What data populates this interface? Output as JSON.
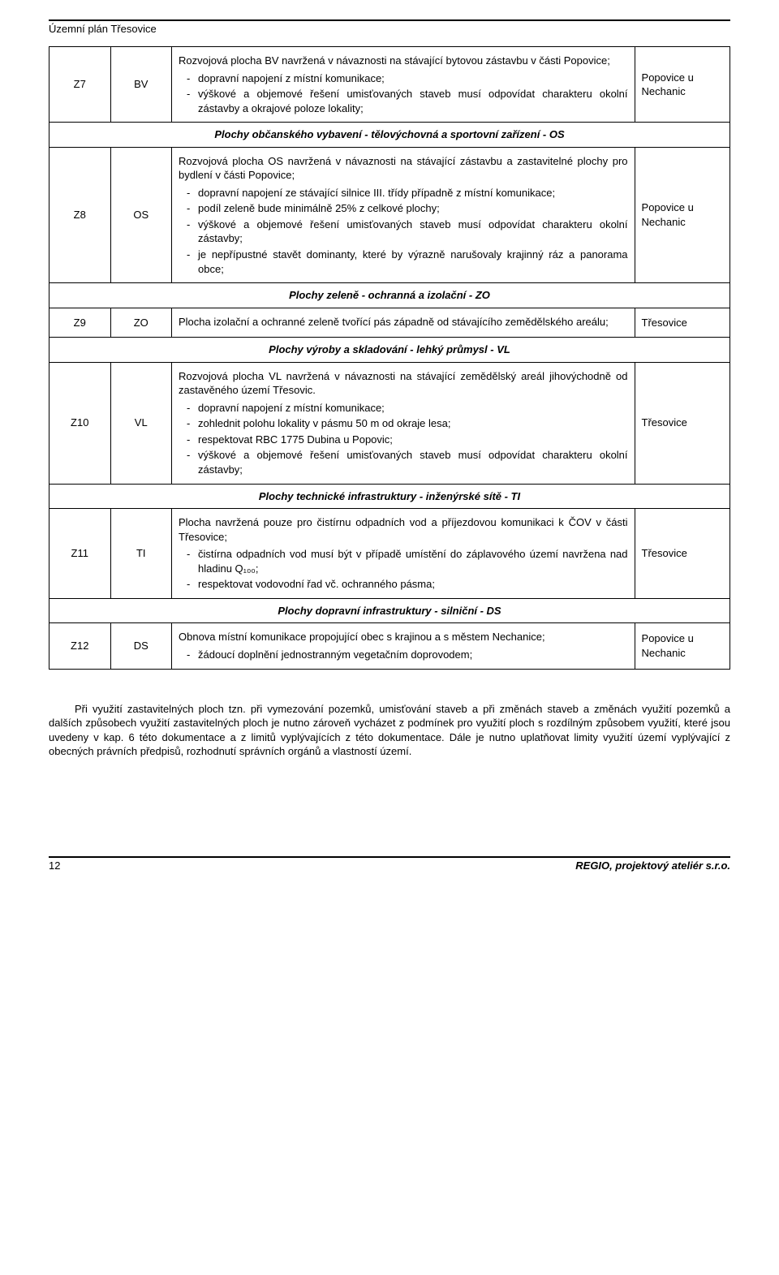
{
  "doc_title": "Územní plán Třesovice",
  "sections": [
    {
      "rows": [
        {
          "code": "Z7",
          "type": "BV",
          "intro": "Rozvojová plocha BV navržená v návaznosti na stávající bytovou zástavbu v části Popovice;",
          "bullets": [
            "dopravní napojení z místní komunikace;",
            "výškové a objemové řešení umisťovaných staveb musí odpovídat charakteru okolní zástavby a okrajové poloze lokality;"
          ],
          "location": "Popovice u Nechanic"
        }
      ]
    },
    {
      "header": "Plochy občanského vybavení - tělovýchovná a sportovní zařízení - OS",
      "rows": [
        {
          "code": "Z8",
          "type": "OS",
          "intro": "Rozvojová plocha OS navržená v návaznosti na stávající zástavbu a zastavitelné plochy pro bydlení v části Popovice;",
          "bullets": [
            "dopravní napojení ze stávající silnice III. třídy případně z místní komunikace;",
            "podíl zeleně bude minimálně 25% z celkové plochy;",
            "výškové a objemové řešení umisťovaných staveb musí odpovídat charakteru okolní zástavby;",
            "je nepřípustné stavět dominanty, které by výrazně narušovaly krajinný ráz a panorama obce;"
          ],
          "location": "Popovice u Nechanic"
        }
      ]
    },
    {
      "header": "Plochy zeleně - ochranná a izolační - ZO",
      "rows": [
        {
          "code": "Z9",
          "type": "ZO",
          "intro": "Plocha izolační a ochranné zeleně tvořící pás západně od stávajícího zemědělského areálu;",
          "bullets": [],
          "location": "Třesovice"
        }
      ]
    },
    {
      "header": "Plochy výroby a skladování - lehký průmysl - VL",
      "rows": [
        {
          "code": "Z10",
          "type": "VL",
          "intro": "Rozvojová plocha VL navržená v návaznosti na stávající zemědělský areál jihovýchodně od zastavěného území Třesovic.",
          "bullets": [
            "dopravní napojení z místní komunikace;",
            "zohlednit polohu lokality v pásmu 50 m od okraje lesa;",
            "respektovat RBC 1775 Dubina u Popovic;",
            "výškové a objemové řešení umisťovaných staveb musí odpovídat charakteru okolní zástavby;"
          ],
          "location": "Třesovice"
        }
      ]
    },
    {
      "header": "Plochy technické infrastruktury - inženýrské sítě - TI",
      "rows": [
        {
          "code": "Z11",
          "type": "TI",
          "intro": "Plocha navržená pouze pro čistírnu odpadních vod a příjezdovou komunikaci k ČOV v části Třesovice;",
          "bullets": [
            "čistírna odpadních vod musí být v případě umístění do záplavového území navržena nad hladinu Q₁₀₀;",
            "respektovat vodovodní řad vč. ochranného pásma;"
          ],
          "location": "Třesovice"
        }
      ]
    },
    {
      "header": "Plochy dopravní infrastruktury - silniční - DS",
      "rows": [
        {
          "code": "Z12",
          "type": "DS",
          "intro": "Obnova místní komunikace propojující obec s krajinou a s městem Nechanice;",
          "bullets": [
            "žádoucí doplnění jednostranným vegetačním doprovodem;"
          ],
          "location": "Popovice u Nechanic"
        }
      ]
    }
  ],
  "body_paragraph": "Při využití zastavitelných ploch tzn. při vymezování pozemků, umisťování staveb a při změnách staveb a změnách využití pozemků a dalších způsobech využití zastavitelných ploch je nutno zároveň vycházet z podmínek pro využití ploch s rozdílným způsobem využití, které jsou uvedeny v kap. 6 této dokumentace a z limitů vyplývajících z této dokumentace. Dále je nutno uplatňovat limity využití území vyplývající z obecných právních předpisů, rozhodnutí správních orgánů a vlastností území.",
  "footer": {
    "page": "12",
    "right": "REGIO, projektový ateliér s.r.o."
  },
  "colors": {
    "background": "#ffffff",
    "text": "#000000",
    "border": "#000000"
  }
}
